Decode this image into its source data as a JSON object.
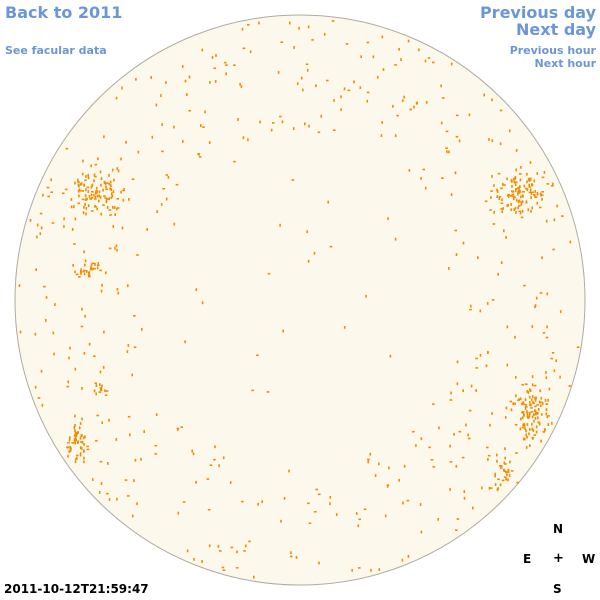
{
  "nav": {
    "back_label": "Back to 2011",
    "facular_label": "See facular data",
    "prev_day_label": "Previous day",
    "next_day_label": "Next day",
    "prev_hour_label": "Previous hour",
    "next_hour_label": "Next hour"
  },
  "timestamp": "2011-10-12T21:59:47",
  "compass": {
    "north": "N",
    "south": "S",
    "east": "E",
    "west": "W",
    "center": "+"
  },
  "colors": {
    "link": "#6b96d8",
    "disk_fill": "#fdf8ec",
    "disk_stroke": "#b0aaa0",
    "facula": "#f08c00",
    "text": "#000000"
  }
}
